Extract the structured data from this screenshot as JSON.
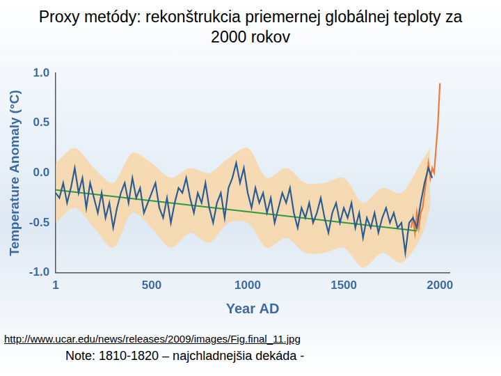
{
  "chart_data": {
    "type": "line",
    "title": "Proxy metódy: rekonštrukcia priemernej globálnej teploty za 2000 rokov",
    "x_label": "Year AD",
    "y_label": "Temperature Anomaly (°C)",
    "annotations": [
      "http://www.ucar.edu/news/releases/2009/images/Fig.final_11.jpg",
      "Note:  1810-1820 – najchladnejšia dekáda -"
    ],
    "xlim": [
      1,
      2050
    ],
    "xticks": [
      1,
      500,
      1000,
      1500,
      2000
    ],
    "ylim": [
      -1,
      1
    ],
    "yticks": [
      {
        "value": -1,
        "label": "-1.0"
      },
      -0.5,
      {
        "value": 0,
        "label": "0.0"
      },
      0.5,
      {
        "value": 1,
        "label": "1.0"
      }
    ],
    "grid": false,
    "series": [
      {
        "color": "#fbd39c",
        "x": [
          1,
          100,
          200,
          300,
          400,
          500,
          600,
          700,
          800,
          900,
          1000,
          1100,
          1200,
          1300,
          1400,
          1500,
          1600,
          1700,
          1800,
          1900,
          1950
        ],
        "upper": [
          0.1,
          0.25,
          0.05,
          -0.1,
          0.2,
          0.1,
          -0.05,
          0.05,
          0.0,
          0.15,
          0.25,
          -0.05,
          0.05,
          -0.1,
          -0.1,
          -0.05,
          -0.3,
          -0.15,
          -0.2,
          0.1,
          0.25
        ],
        "lower": [
          -0.5,
          -0.35,
          -0.55,
          -0.75,
          -0.4,
          -0.55,
          -0.75,
          -0.6,
          -0.7,
          -0.5,
          -0.5,
          -0.75,
          -0.65,
          -0.8,
          -0.8,
          -0.75,
          -0.95,
          -0.8,
          -0.9,
          -0.65,
          -0.35
        ]
      },
      {
        "color": "#2a5d93",
        "marker": "none",
        "line_style": "solid",
        "x": [
          1,
          20,
          40,
          60,
          80,
          100,
          120,
          140,
          160,
          180,
          200,
          220,
          240,
          260,
          280,
          300,
          320,
          340,
          360,
          380,
          400,
          420,
          440,
          460,
          480,
          500,
          520,
          540,
          560,
          580,
          600,
          620,
          640,
          660,
          680,
          700,
          720,
          740,
          760,
          780,
          800,
          820,
          840,
          860,
          880,
          900,
          920,
          940,
          960,
          980,
          1000,
          1020,
          1040,
          1060,
          1080,
          1100,
          1120,
          1140,
          1160,
          1180,
          1200,
          1220,
          1240,
          1260,
          1280,
          1300,
          1320,
          1340,
          1360,
          1380,
          1400,
          1420,
          1440,
          1460,
          1480,
          1500,
          1520,
          1540,
          1560,
          1580,
          1600,
          1620,
          1640,
          1660,
          1680,
          1700,
          1720,
          1740,
          1760,
          1780,
          1800,
          1820,
          1840,
          1860,
          1880,
          1900,
          1920,
          1940,
          1960
        ],
        "values": [
          -0.2,
          -0.25,
          -0.1,
          -0.3,
          -0.15,
          0.05,
          -0.2,
          -0.05,
          -0.35,
          -0.1,
          -0.25,
          -0.4,
          -0.2,
          -0.45,
          -0.3,
          -0.55,
          -0.35,
          -0.2,
          -0.1,
          -0.3,
          -0.05,
          -0.25,
          -0.15,
          -0.4,
          -0.3,
          -0.2,
          -0.1,
          -0.35,
          -0.45,
          -0.25,
          -0.5,
          -0.3,
          -0.15,
          -0.2,
          -0.05,
          -0.25,
          -0.4,
          -0.2,
          -0.3,
          -0.1,
          -0.35,
          -0.5,
          -0.3,
          -0.2,
          -0.45,
          -0.15,
          -0.05,
          0.1,
          -0.1,
          0.05,
          -0.2,
          -0.35,
          -0.15,
          -0.3,
          -0.2,
          -0.4,
          -0.25,
          -0.5,
          -0.35,
          -0.2,
          -0.3,
          -0.15,
          -0.4,
          -0.55,
          -0.35,
          -0.45,
          -0.3,
          -0.5,
          -0.4,
          -0.25,
          -0.45,
          -0.6,
          -0.4,
          -0.3,
          -0.5,
          -0.35,
          -0.45,
          -0.3,
          -0.55,
          -0.4,
          -0.65,
          -0.45,
          -0.55,
          -0.4,
          -0.6,
          -0.45,
          -0.35,
          -0.5,
          -0.4,
          -0.55,
          -0.5,
          -0.8,
          -0.5,
          -0.45,
          -0.55,
          -0.3,
          -0.1,
          0.05,
          -0.05
        ]
      },
      {
        "color": "#2e9a3e",
        "marker": "none",
        "line_style": "solid",
        "x": [
          1,
          1880
        ],
        "values": [
          -0.17,
          -0.58
        ]
      },
      {
        "color": "#f07a3a",
        "marker": "none",
        "line_style": "solid",
        "x": [
          1850,
          1860,
          1870,
          1880,
          1890,
          1900,
          1910,
          1920,
          1930,
          1940,
          1950,
          1960,
          1970,
          1980,
          1990,
          2000
        ],
        "values": [
          -0.55,
          -0.45,
          -0.6,
          -0.4,
          -0.55,
          -0.4,
          -0.35,
          -0.2,
          -0.05,
          0.1,
          -0.05,
          0.05,
          0.0,
          0.25,
          0.5,
          0.9
        ]
      }
    ]
  }
}
